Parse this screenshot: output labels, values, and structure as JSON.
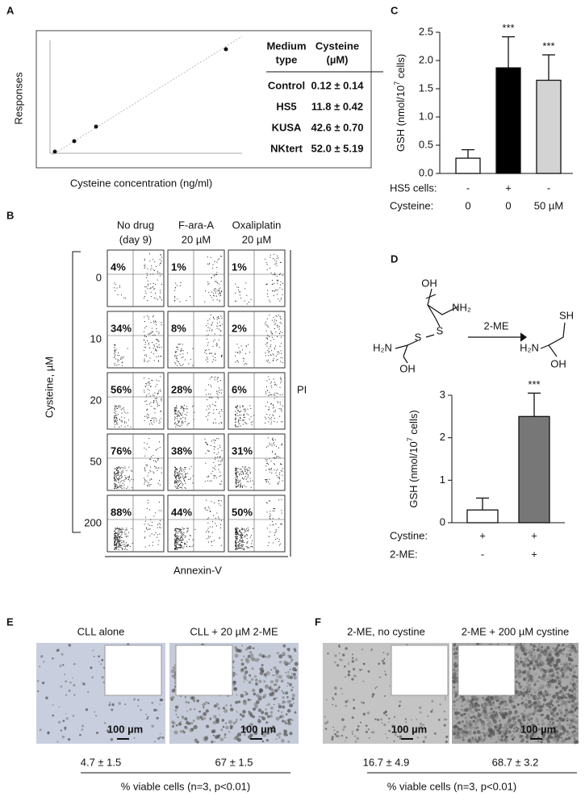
{
  "panel_labels": [
    "A",
    "B",
    "C",
    "D",
    "E",
    "F"
  ],
  "panel_a": {
    "y_label": "Responses",
    "x_label": "Cysteine concentration (ng/ml)",
    "table": {
      "header": [
        [
          "Medium",
          "type"
        ],
        [
          "Cysteine",
          "(µM)"
        ]
      ],
      "rows": [
        [
          "Control",
          "0.12 ± 0.14"
        ],
        [
          "HS5",
          "11.8 ± 0.42"
        ],
        [
          "KUSA",
          "42.6 ± 0.70"
        ],
        [
          "NKtert",
          "52.0 ± 5.19"
        ]
      ]
    }
  },
  "panel_b": {
    "columns": [
      [
        "No drug",
        "(day 9)"
      ],
      [
        "F-ara-A",
        "20 µM"
      ],
      [
        "Oxaliplatin",
        "20 µM"
      ]
    ],
    "row_axis_label": "Cysteine, µM",
    "rows": [
      "0",
      "10",
      "20",
      "50",
      "200"
    ],
    "percentages": [
      [
        "4%",
        "1%",
        "1%"
      ],
      [
        "34%",
        "8%",
        "2%"
      ],
      [
        "56%",
        "28%",
        "6%"
      ],
      [
        "76%",
        "38%",
        "31%"
      ],
      [
        "88%",
        "44%",
        "50%"
      ]
    ],
    "y_axis_label": "PI",
    "x_axis_label": "Annexin-V"
  },
  "chart_data": [
    {
      "type": "bar",
      "ylabel": [
        "GSH (nmol/10",
        "7",
        " cells)"
      ],
      "values": [
        0.27,
        1.87,
        1.65
      ],
      "errors": [
        0.15,
        0.55,
        0.45
      ],
      "colors": [
        "#ffffff",
        "#000000",
        "#d3d3d3"
      ],
      "annotations": [
        null,
        "***",
        "***"
      ],
      "ylim": [
        0,
        2.5
      ],
      "yticks": [
        {
          "value": 0,
          "label": "0.0"
        },
        0.5,
        {
          "value": 1,
          "label": "1.0"
        },
        1.5,
        {
          "value": 2,
          "label": "2.0"
        },
        2.5
      ],
      "rows": [
        {
          "label": "HS5 cells:",
          "values": [
            "-",
            "+",
            "-"
          ]
        },
        {
          "label": "Cysteine:",
          "values": [
            "0",
            "0",
            "50 µM"
          ]
        }
      ]
    },
    {
      "type": "bar",
      "ylabel": [
        "GSH (nmol/10",
        "7",
        " cells)"
      ],
      "values": [
        0.3,
        2.5
      ],
      "errors": [
        0.28,
        0.55
      ],
      "colors": [
        "#ffffff",
        "#777777"
      ],
      "annotations": [
        null,
        "***"
      ],
      "ylim": [
        0,
        3
      ],
      "yticks": [
        0,
        1,
        2,
        3
      ],
      "rows": [
        {
          "label": "Cystine:",
          "values": [
            "+",
            "+"
          ]
        },
        {
          "label": "2-ME:",
          "values": [
            "-",
            "+"
          ]
        }
      ]
    }
  ],
  "panel_d": {
    "reaction_label": "2-ME",
    "atoms": [
      "OH",
      "NH₂",
      "S",
      "S",
      "H₂N",
      "OH",
      "SH",
      "H₂N",
      "OH"
    ]
  },
  "panel_e": {
    "images": [
      {
        "title": "CLL alone",
        "scale": "100 µm",
        "viability": "4.7 ± 1.5"
      },
      {
        "title": "CLL + 20 µM 2-ME",
        "scale": "100 µm",
        "viability": "67 ± 1.5"
      }
    ],
    "footer": "% viable cells (n=3, p<0.01)"
  },
  "panel_f": {
    "images": [
      {
        "title": "2-ME, no cystine",
        "scale": "100 µm",
        "viability": "16.7 ± 4.9"
      },
      {
        "title": "2-ME + 200 µM cystine",
        "scale": "100 µm",
        "viability": "68.7 ± 3.2"
      }
    ],
    "footer": "% viable cells (n=3, p<0.01)"
  }
}
